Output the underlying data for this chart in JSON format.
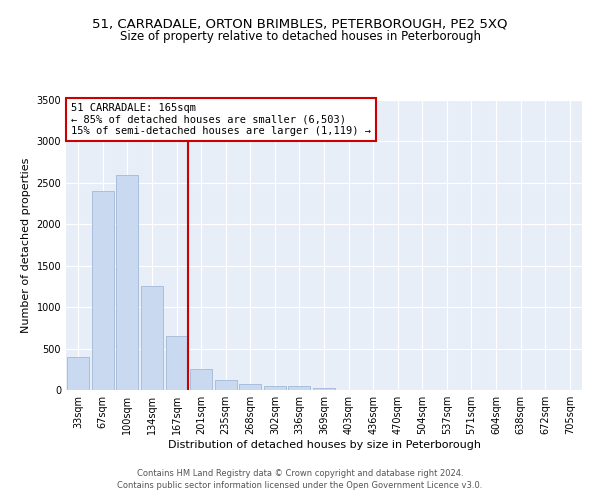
{
  "title_line1": "51, CARRADALE, ORTON BRIMBLES, PETERBOROUGH, PE2 5XQ",
  "title_line2": "Size of property relative to detached houses in Peterborough",
  "xlabel": "Distribution of detached houses by size in Peterborough",
  "ylabel": "Number of detached properties",
  "categories": [
    "33sqm",
    "67sqm",
    "100sqm",
    "134sqm",
    "167sqm",
    "201sqm",
    "235sqm",
    "268sqm",
    "302sqm",
    "336sqm",
    "369sqm",
    "403sqm",
    "436sqm",
    "470sqm",
    "504sqm",
    "537sqm",
    "571sqm",
    "604sqm",
    "638sqm",
    "672sqm",
    "705sqm"
  ],
  "values": [
    400,
    2400,
    2600,
    1250,
    650,
    250,
    120,
    70,
    50,
    45,
    20,
    5,
    0,
    0,
    0,
    0,
    0,
    0,
    0,
    0,
    0
  ],
  "bar_color": "#c9d9f0",
  "bar_edge_color": "#a0b8d8",
  "marker_index": 4,
  "marker_color": "#cc0000",
  "annotation_text": "51 CARRADALE: 165sqm\n← 85% of detached houses are smaller (6,503)\n15% of semi-detached houses are larger (1,119) →",
  "annotation_box_color": "#ffffff",
  "annotation_box_edge": "#cc0000",
  "ylim": [
    0,
    3500
  ],
  "yticks": [
    0,
    500,
    1000,
    1500,
    2000,
    2500,
    3000,
    3500
  ],
  "footer_line1": "Contains HM Land Registry data © Crown copyright and database right 2024.",
  "footer_line2": "Contains public sector information licensed under the Open Government Licence v3.0.",
  "plot_bg_color": "#e8eef8",
  "title1_fontsize": 9.5,
  "title2_fontsize": 8.5,
  "annotation_fontsize": 7.5,
  "tick_fontsize": 7,
  "axis_label_fontsize": 8,
  "footer_fontsize": 6
}
